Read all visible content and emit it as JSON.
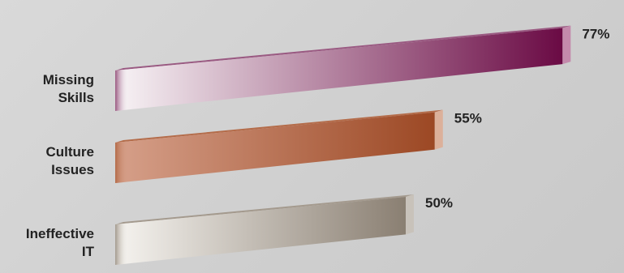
{
  "chart_data": {
    "type": "bar",
    "orientation": "horizontal",
    "title": "",
    "xlabel": "",
    "ylabel": "",
    "xlim": [
      0,
      100
    ],
    "grid": false,
    "legend": "none",
    "categories": [
      [
        "Missing",
        "Skills"
      ],
      [
        "Culture",
        "Issues"
      ],
      [
        "Ineffective",
        "IT"
      ]
    ],
    "values": [
      77,
      55,
      50
    ],
    "value_labels": [
      "77%",
      "55%",
      "50%"
    ],
    "colors": [
      {
        "light": "#f8f4f6",
        "dark": "#6a0a44",
        "top": "#9a5a82",
        "end": "#c48aac"
      },
      {
        "light": "#d6a08a",
        "dark": "#9c4824",
        "top": "#b46c4a",
        "end": "#dcb09a"
      },
      {
        "light": "#f6f4f0",
        "dark": "#8a7f72",
        "top": "#a49a8e",
        "end": "#c8c2ba"
      }
    ]
  }
}
